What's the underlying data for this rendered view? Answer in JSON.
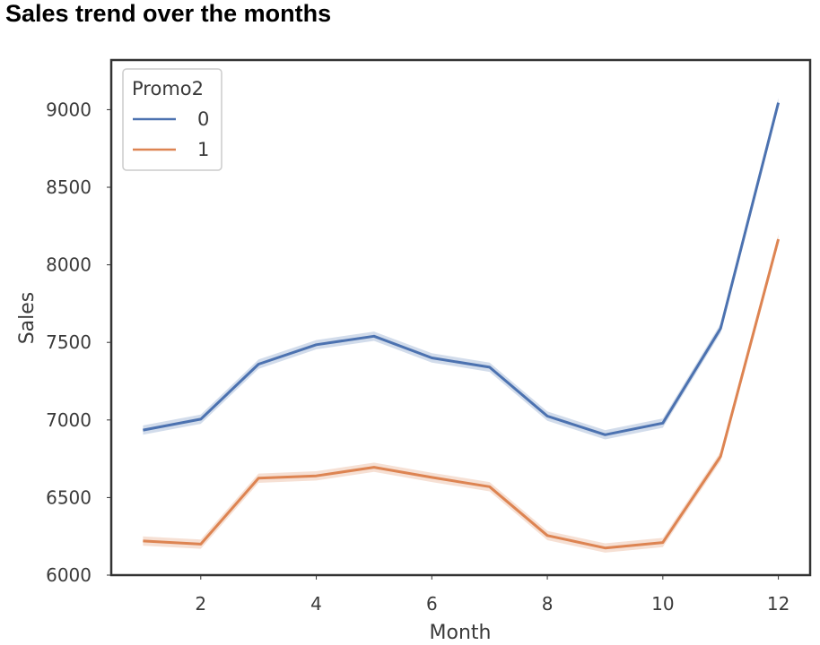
{
  "title": "Sales trend over the months",
  "chart_data": {
    "type": "line",
    "title": "Sales trend over the months",
    "xlabel": "Month",
    "ylabel": "Sales",
    "x": [
      1,
      2,
      3,
      4,
      5,
      6,
      7,
      8,
      9,
      10,
      11,
      12
    ],
    "xlim": [
      0.45,
      12.55
    ],
    "ylim": [
      6000,
      9320
    ],
    "xticks": [
      2,
      4,
      6,
      8,
      10,
      12
    ],
    "yticks": [
      6000,
      6500,
      7000,
      7500,
      8000,
      8500,
      9000
    ],
    "grid": false,
    "legend": {
      "title": "Promo2",
      "placement": "top-left"
    },
    "series": [
      {
        "name": "0",
        "color": "#4c72b0",
        "values": [
          6935,
          7005,
          7360,
          7485,
          7540,
          7400,
          7340,
          7025,
          6905,
          6980,
          7590,
          9045
        ]
      },
      {
        "name": "1",
        "color": "#dd8452",
        "values": [
          6220,
          6200,
          6625,
          6640,
          6695,
          6630,
          6570,
          6255,
          6175,
          6210,
          6765,
          8165
        ]
      }
    ]
  }
}
